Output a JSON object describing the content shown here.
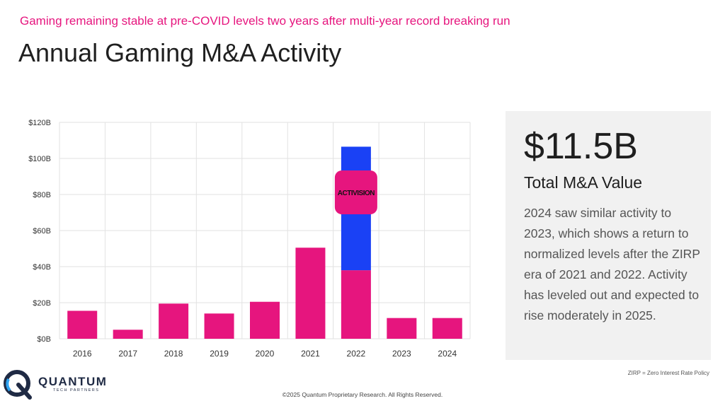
{
  "header": {
    "subtitle": "Gaming remaining stable at pre-COVID levels two years after multi-year record breaking run",
    "title": "Annual Gaming M&A Activity"
  },
  "chart_data": {
    "type": "bar",
    "stacked": true,
    "categories": [
      "2016",
      "2017",
      "2018",
      "2019",
      "2020",
      "2021",
      "2022",
      "2023",
      "2024"
    ],
    "series": [
      {
        "values": [
          15.5,
          5,
          19.5,
          14,
          20.5,
          50.5,
          38,
          11.5,
          11.5
        ],
        "color": "#e6157e"
      },
      {
        "values": [
          0,
          0,
          0,
          0,
          0,
          0,
          68.5,
          0,
          0
        ],
        "color": "#1a41f5"
      }
    ],
    "ylim": [
      0,
      120
    ],
    "yticks": [
      0,
      20,
      40,
      60,
      80,
      100,
      120
    ],
    "ytick_labels": [
      "$0B",
      "$20B",
      "$40B",
      "$60B",
      "$80B",
      "$100B",
      "$120B"
    ],
    "grid": true,
    "annotation": {
      "category": "2022",
      "text": "ACTIVISION",
      "value": 80,
      "bg": "#e6157e",
      "fg": "#111111"
    }
  },
  "panel": {
    "big_value": "$11.5B",
    "label": "Total M&A Value",
    "description": "2024 saw similar activity to 2023, which shows a return to normalized levels after the ZIRP era of 2021 and 2022. Activity has leveled out and expected to rise moderately in 2025."
  },
  "footnote": "ZIRP = Zero Interest Rate Policy",
  "copyright": "©2025 Quantum Proprietary Research. All Rights Reserved.",
  "logo": {
    "name": "QUANTUM",
    "sub": "TECH PARTNERS",
    "icon": "quantum-q-logo"
  }
}
